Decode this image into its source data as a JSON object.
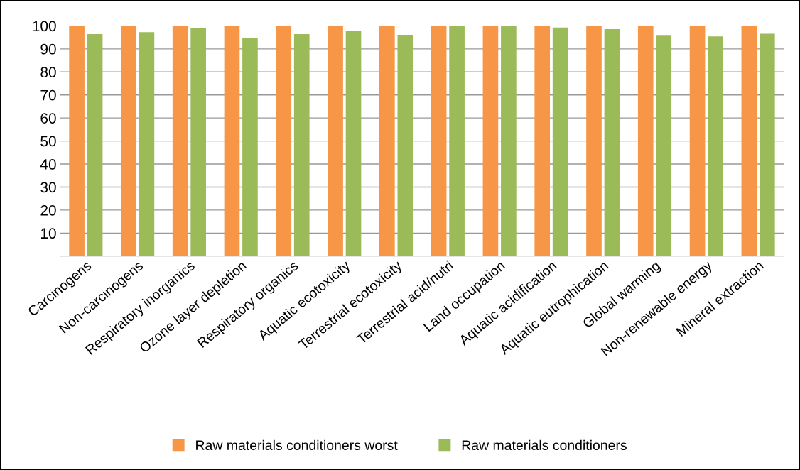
{
  "chart_data": {
    "type": "bar",
    "categories": [
      "Carcinogens",
      "Non-carcinogens",
      "Respiratory inorganics",
      "Ozone layer depletion",
      "Respiratory organics",
      "Aquatic ecotoxicity",
      "Terrestrial ecotoxicity",
      "Terrestrial acid/nutri",
      "Land occupation",
      "Aquatic acidification",
      "Aquatic eutrophication",
      "Global warming",
      "Non-renewable energy",
      "Mineral extraction"
    ],
    "series": [
      {
        "name": "Raw materials conditioners worst",
        "color": "#f79646",
        "values": [
          100,
          100,
          100,
          100,
          100,
          100,
          100,
          100,
          100,
          100,
          100,
          100,
          100,
          100
        ]
      },
      {
        "name": "Raw materials conditioners",
        "color": "#9bbb59",
        "values": [
          96.4,
          97.3,
          99.2,
          94.9,
          96.4,
          97.7,
          96.1,
          100,
          100,
          99.3,
          98.6,
          95.7,
          95.4,
          96.6
        ]
      }
    ],
    "ylim": [
      0,
      100
    ],
    "yticks": [
      {
        "value": 0,
        "label": null
      },
      10,
      20,
      30,
      40,
      50,
      60,
      70,
      80,
      90,
      100
    ],
    "grid": "y",
    "legend": "bottom"
  }
}
